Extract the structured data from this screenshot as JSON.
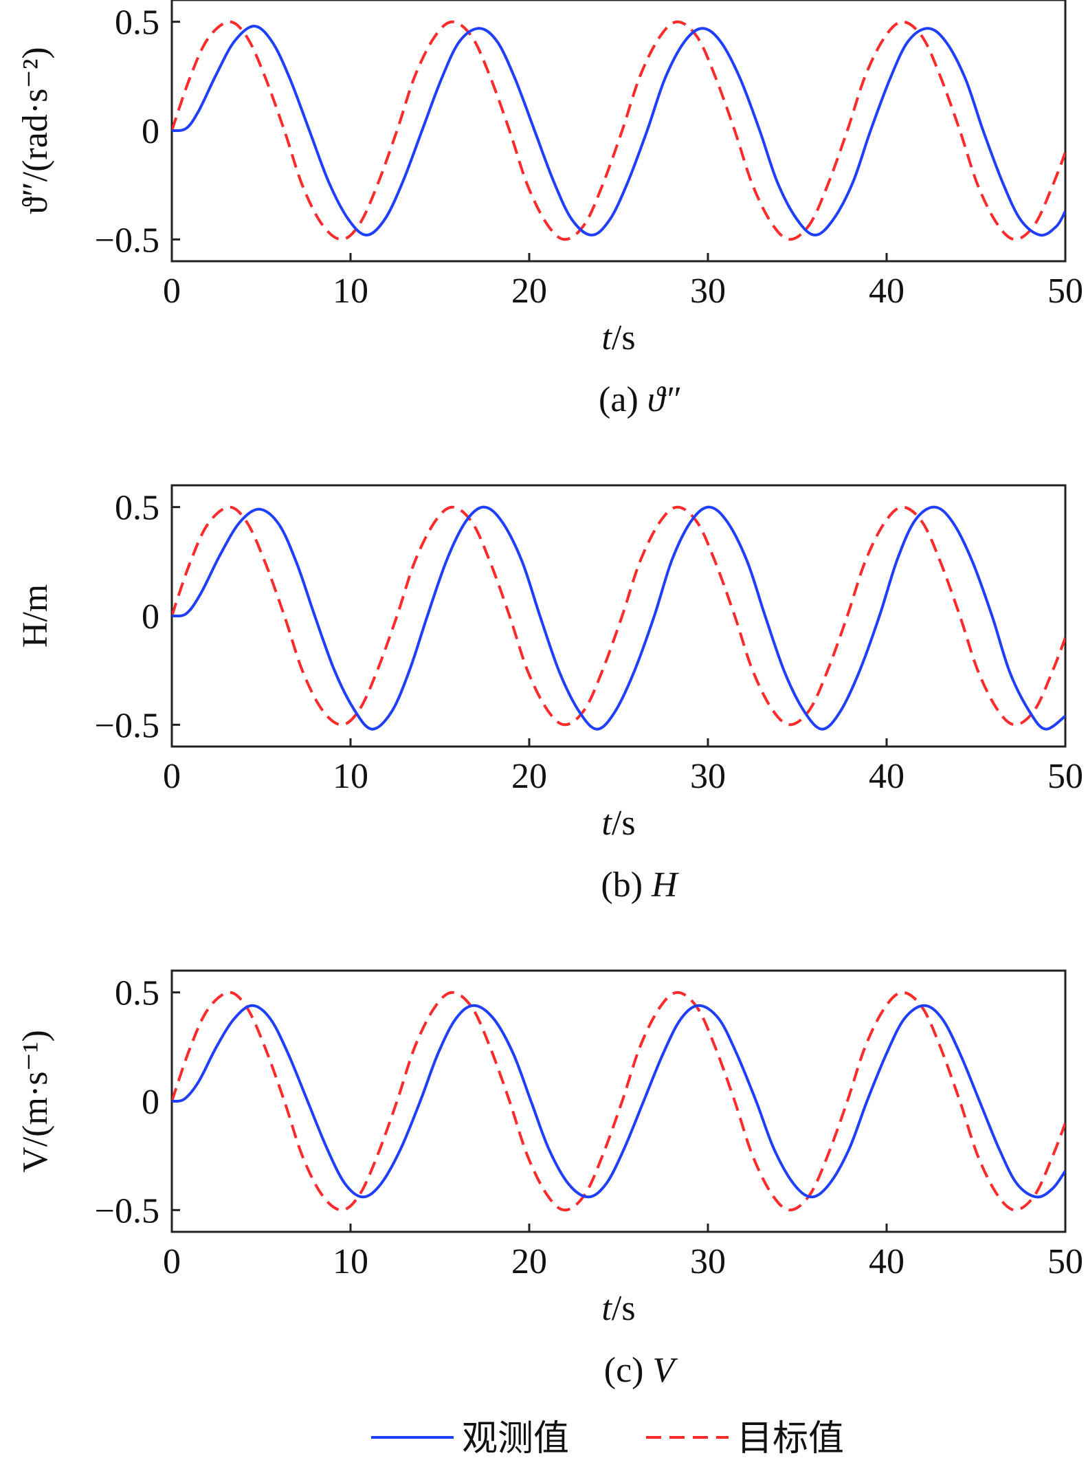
{
  "chart_data": [
    {
      "type": "line",
      "panel": "a",
      "caption_prefix": "(a) ",
      "caption_symbol": "ϑ″",
      "ylabel": "ϑ″/(rad·s⁻²)",
      "xlabel_var": "t",
      "xlabel_unit": "/s",
      "xlim": [
        0,
        50
      ],
      "ylim": [
        -0.6,
        0.6
      ],
      "xticks": [
        0,
        10,
        20,
        30,
        40,
        50
      ],
      "xtick_labels": [
        "0",
        "10",
        "20",
        "30",
        "40",
        "50"
      ],
      "yticks": [
        0.5,
        0,
        -0.5
      ],
      "ytick_labels": [
        "0.5",
        "0",
        "−0.5"
      ],
      "series": [
        {
          "name": "观测值",
          "color": "#1f3fff",
          "dash": "solid",
          "x": [
            0,
            0.8,
            1.5,
            2.5,
            3.5,
            4.6,
            5.6,
            6.6,
            7.7,
            8.8,
            9.9,
            10.9,
            11.9,
            12.9,
            14.0,
            15.1,
            16.1,
            17.2,
            18.2,
            19.2,
            20.3,
            21.4,
            22.4,
            23.5,
            24.5,
            25.5,
            26.6,
            27.6,
            28.7,
            29.7,
            30.7,
            31.8,
            32.9,
            33.9,
            35.0,
            36.0,
            37.0,
            38.1,
            39.1,
            40.2,
            41.2,
            42.3,
            43.3,
            44.4,
            45.4,
            46.5,
            47.5,
            48.6,
            49.5,
            50
          ],
          "y": [
            0,
            0.01,
            0.09,
            0.26,
            0.41,
            0.48,
            0.41,
            0.24,
            0.0,
            -0.24,
            -0.41,
            -0.48,
            -0.41,
            -0.24,
            0.0,
            0.24,
            0.41,
            0.47,
            0.41,
            0.24,
            0.0,
            -0.24,
            -0.41,
            -0.48,
            -0.41,
            -0.24,
            0.0,
            0.24,
            0.41,
            0.47,
            0.41,
            0.24,
            0.0,
            -0.24,
            -0.41,
            -0.48,
            -0.41,
            -0.24,
            0.0,
            0.24,
            0.41,
            0.47,
            0.41,
            0.24,
            0.0,
            -0.24,
            -0.41,
            -0.48,
            -0.44,
            -0.37
          ]
        },
        {
          "name": "目标值",
          "color": "#ff2a2a",
          "dash": "dashed",
          "x": [
            0,
            1.0,
            2.0,
            3.2,
            4.2,
            5.2,
            6.3,
            7.3,
            8.4,
            9.5,
            10.5,
            11.5,
            12.6,
            13.6,
            14.7,
            15.7,
            16.8,
            17.8,
            18.9,
            19.9,
            21.0,
            22.0,
            23.1,
            24.1,
            25.2,
            26.2,
            27.3,
            28.3,
            29.4,
            30.4,
            31.5,
            32.5,
            33.6,
            34.6,
            35.7,
            36.7,
            37.8,
            38.8,
            39.9,
            40.9,
            42.0,
            43.0,
            44.1,
            45.1,
            46.2,
            47.2,
            48.3,
            49.3,
            50
          ],
          "y": [
            0,
            0.24,
            0.42,
            0.5,
            0.43,
            0.25,
            0.0,
            -0.25,
            -0.43,
            -0.5,
            -0.43,
            -0.25,
            0.0,
            0.25,
            0.43,
            0.5,
            0.43,
            0.25,
            0.0,
            -0.25,
            -0.43,
            -0.5,
            -0.43,
            -0.25,
            0.0,
            0.25,
            0.43,
            0.5,
            0.43,
            0.25,
            0.0,
            -0.25,
            -0.43,
            -0.5,
            -0.43,
            -0.25,
            0.0,
            0.25,
            0.43,
            0.5,
            0.43,
            0.25,
            0.0,
            -0.25,
            -0.43,
            -0.5,
            -0.43,
            -0.25,
            -0.1
          ]
        }
      ]
    },
    {
      "type": "line",
      "panel": "b",
      "caption_prefix": "(b) ",
      "caption_symbol": "H",
      "ylabel": "H/m",
      "xlabel_var": "t",
      "xlabel_unit": "/s",
      "xlim": [
        0,
        50
      ],
      "ylim": [
        -0.6,
        0.6
      ],
      "xticks": [
        0,
        10,
        20,
        30,
        40,
        50
      ],
      "xtick_labels": [
        "0",
        "10",
        "20",
        "30",
        "40",
        "50"
      ],
      "yticks": [
        0.5,
        0,
        -0.5
      ],
      "ytick_labels": [
        "0.5",
        "0",
        "−0.5"
      ],
      "series": [
        {
          "name": "观测值",
          "color": "#1f3fff",
          "dash": "solid",
          "x": [
            0,
            0.8,
            1.6,
            2.7,
            3.8,
            4.9,
            6.0,
            7.0,
            8.0,
            9.1,
            10.2,
            11.2,
            12.3,
            13.3,
            14.3,
            15.4,
            16.5,
            17.5,
            18.5,
            19.6,
            20.6,
            21.7,
            22.8,
            23.8,
            24.8,
            25.9,
            27.0,
            28.0,
            29.1,
            30.1,
            31.1,
            32.2,
            33.2,
            34.3,
            35.4,
            36.4,
            37.4,
            38.5,
            39.6,
            40.6,
            41.6,
            42.7,
            43.7,
            44.8,
            45.9,
            46.9,
            48.0,
            48.9,
            50
          ],
          "y": [
            0,
            0.01,
            0.1,
            0.28,
            0.43,
            0.49,
            0.42,
            0.24,
            0.0,
            -0.25,
            -0.43,
            -0.52,
            -0.44,
            -0.25,
            0.0,
            0.26,
            0.44,
            0.5,
            0.43,
            0.25,
            0.0,
            -0.26,
            -0.44,
            -0.52,
            -0.44,
            -0.25,
            0.0,
            0.26,
            0.44,
            0.5,
            0.43,
            0.25,
            0.0,
            -0.26,
            -0.44,
            -0.52,
            -0.44,
            -0.25,
            0.0,
            0.26,
            0.44,
            0.5,
            0.43,
            0.25,
            0.0,
            -0.26,
            -0.44,
            -0.52,
            -0.46
          ]
        },
        {
          "name": "目标值",
          "color": "#ff2a2a",
          "dash": "dashed",
          "x": [
            0,
            1.0,
            2.0,
            3.2,
            4.2,
            5.2,
            6.3,
            7.3,
            8.4,
            9.5,
            10.5,
            11.5,
            12.6,
            13.6,
            14.7,
            15.7,
            16.8,
            17.8,
            18.9,
            19.9,
            21.0,
            22.0,
            23.1,
            24.1,
            25.2,
            26.2,
            27.3,
            28.3,
            29.4,
            30.4,
            31.5,
            32.5,
            33.6,
            34.6,
            35.7,
            36.7,
            37.8,
            38.8,
            39.9,
            40.9,
            42.0,
            43.0,
            44.1,
            45.1,
            46.2,
            47.2,
            48.3,
            49.3,
            50
          ],
          "y": [
            0,
            0.24,
            0.42,
            0.5,
            0.43,
            0.25,
            0.0,
            -0.25,
            -0.43,
            -0.5,
            -0.43,
            -0.25,
            0.0,
            0.25,
            0.43,
            0.5,
            0.43,
            0.25,
            0.0,
            -0.25,
            -0.43,
            -0.5,
            -0.43,
            -0.25,
            0.0,
            0.25,
            0.43,
            0.5,
            0.43,
            0.25,
            0.0,
            -0.25,
            -0.43,
            -0.5,
            -0.43,
            -0.25,
            0.0,
            0.25,
            0.43,
            0.5,
            0.43,
            0.25,
            0.0,
            -0.25,
            -0.43,
            -0.5,
            -0.43,
            -0.25,
            -0.1
          ]
        }
      ]
    },
    {
      "type": "line",
      "panel": "c",
      "caption_prefix": "(c) ",
      "caption_symbol": "V",
      "ylabel": "V/(m·s⁻¹)",
      "xlabel_var": "t",
      "xlabel_unit": "/s",
      "xlim": [
        0,
        50
      ],
      "ylim": [
        -0.6,
        0.6
      ],
      "xticks": [
        0,
        10,
        20,
        30,
        40,
        50
      ],
      "xtick_labels": [
        "0",
        "10",
        "20",
        "30",
        "40",
        "50"
      ],
      "yticks": [
        0.5,
        0,
        -0.5
      ],
      "ytick_labels": [
        "0.5",
        "0",
        "−0.5"
      ],
      "series": [
        {
          "name": "观测值",
          "color": "#1f3fff",
          "dash": "solid",
          "x": [
            0,
            0.7,
            1.5,
            2.5,
            3.5,
            4.5,
            5.5,
            6.5,
            7.6,
            8.7,
            9.7,
            10.7,
            11.7,
            12.8,
            13.9,
            14.9,
            15.9,
            16.9,
            18.0,
            19.1,
            20.1,
            21.1,
            22.2,
            23.3,
            24.3,
            25.3,
            26.4,
            27.5,
            28.5,
            29.5,
            30.6,
            31.6,
            32.7,
            33.7,
            34.8,
            35.8,
            36.8,
            37.9,
            38.9,
            40.0,
            41.0,
            42.1,
            43.1,
            44.1,
            45.2,
            46.3,
            47.3,
            48.4,
            49.3,
            50
          ],
          "y": [
            0,
            0.01,
            0.09,
            0.25,
            0.38,
            0.44,
            0.38,
            0.22,
            0.0,
            -0.22,
            -0.38,
            -0.44,
            -0.38,
            -0.22,
            0.0,
            0.22,
            0.38,
            0.44,
            0.38,
            0.22,
            0.0,
            -0.22,
            -0.38,
            -0.44,
            -0.38,
            -0.22,
            0.0,
            0.22,
            0.38,
            0.44,
            0.38,
            0.22,
            0.0,
            -0.22,
            -0.38,
            -0.44,
            -0.38,
            -0.22,
            0.0,
            0.22,
            0.38,
            0.44,
            0.38,
            0.22,
            0.0,
            -0.22,
            -0.38,
            -0.44,
            -0.4,
            -0.32
          ]
        },
        {
          "name": "目标值",
          "color": "#ff2a2a",
          "dash": "dashed",
          "x": [
            0,
            1.0,
            2.0,
            3.2,
            4.2,
            5.2,
            6.3,
            7.3,
            8.4,
            9.5,
            10.5,
            11.5,
            12.6,
            13.6,
            14.7,
            15.7,
            16.8,
            17.8,
            18.9,
            19.9,
            21.0,
            22.0,
            23.1,
            24.1,
            25.2,
            26.2,
            27.3,
            28.3,
            29.4,
            30.4,
            31.5,
            32.5,
            33.6,
            34.6,
            35.7,
            36.7,
            37.8,
            38.8,
            39.9,
            40.9,
            42.0,
            43.0,
            44.1,
            45.1,
            46.2,
            47.2,
            48.3,
            49.3,
            50
          ],
          "y": [
            0,
            0.24,
            0.42,
            0.5,
            0.43,
            0.25,
            0.0,
            -0.25,
            -0.43,
            -0.5,
            -0.43,
            -0.25,
            0.0,
            0.25,
            0.43,
            0.5,
            0.43,
            0.25,
            0.0,
            -0.25,
            -0.43,
            -0.5,
            -0.43,
            -0.25,
            0.0,
            0.25,
            0.43,
            0.5,
            0.43,
            0.25,
            0.0,
            -0.25,
            -0.43,
            -0.5,
            -0.43,
            -0.25,
            0.0,
            0.25,
            0.43,
            0.5,
            0.43,
            0.25,
            0.0,
            -0.25,
            -0.43,
            -0.5,
            -0.43,
            -0.25,
            -0.1
          ]
        }
      ]
    }
  ],
  "legend": {
    "placement": "bottom-center",
    "items": [
      {
        "label": "观测值",
        "color": "#1f3fff",
        "dash": "solid"
      },
      {
        "label": "目标值",
        "color": "#ff2a2a",
        "dash": "dashed"
      }
    ]
  }
}
